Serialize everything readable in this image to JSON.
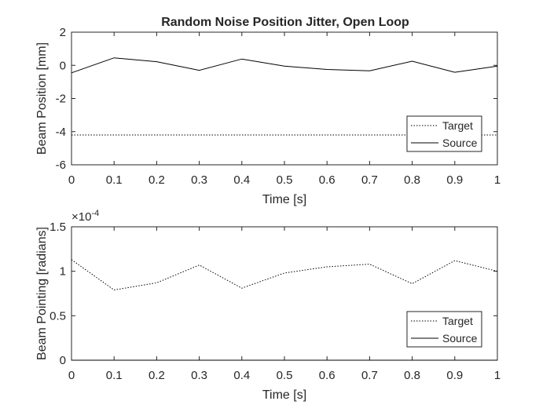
{
  "title": "Random Noise Position Jitter, Open Loop",
  "chart_data": [
    {
      "type": "line",
      "xlabel": "Time [s]",
      "ylabel": "Beam Position [mm]",
      "xlim": [
        0,
        1
      ],
      "ylim": [
        -6,
        2
      ],
      "xticks": [
        "0",
        "0.1",
        "0.2",
        "0.3",
        "0.4",
        "0.5",
        "0.6",
        "0.7",
        "0.8",
        "0.9",
        "1"
      ],
      "yticks": [
        "-6",
        "-4",
        "-2",
        "0",
        "2"
      ],
      "grid": false,
      "legend": "bottom-right",
      "x": [
        0,
        0.1,
        0.2,
        0.3,
        0.4,
        0.5,
        0.6,
        0.7,
        0.8,
        0.9,
        1.0
      ],
      "series": [
        {
          "name": "Target",
          "style": "dotted",
          "values": [
            -4.2,
            -4.2,
            -4.2,
            -4.2,
            -4.2,
            -4.2,
            -4.2,
            -4.2,
            -4.2,
            -4.2,
            -4.2
          ]
        },
        {
          "name": "Source",
          "style": "solid",
          "values": [
            -0.45,
            0.45,
            0.22,
            -0.3,
            0.38,
            -0.05,
            -0.25,
            -0.33,
            0.25,
            -0.42,
            -0.05
          ]
        }
      ]
    },
    {
      "type": "line",
      "xlabel": "Time [s]",
      "ylabel": "Beam Pointing [radians]",
      "exponent": "×10",
      "exponent_power": "-4",
      "xlim": [
        0,
        1
      ],
      "ylim": [
        0,
        1.5
      ],
      "xticks": [
        "0",
        "0.1",
        "0.2",
        "0.3",
        "0.4",
        "0.5",
        "0.6",
        "0.7",
        "0.8",
        "0.9",
        "1"
      ],
      "yticks": [
        "0",
        "0.5",
        "1",
        "1.5"
      ],
      "grid": false,
      "legend": "bottom-right",
      "x": [
        0,
        0.1,
        0.2,
        0.3,
        0.4,
        0.5,
        0.6,
        0.7,
        0.8,
        0.9,
        1.0
      ],
      "series": [
        {
          "name": "Target",
          "style": "dotted",
          "values": [
            1.13,
            0.79,
            0.87,
            1.07,
            0.81,
            0.98,
            1.05,
            1.08,
            0.86,
            1.12,
            1.0
          ]
        },
        {
          "name": "Source",
          "style": "solid",
          "values": [
            0,
            0,
            0,
            0,
            0,
            0,
            0,
            0,
            0,
            0,
            0
          ]
        }
      ]
    }
  ]
}
